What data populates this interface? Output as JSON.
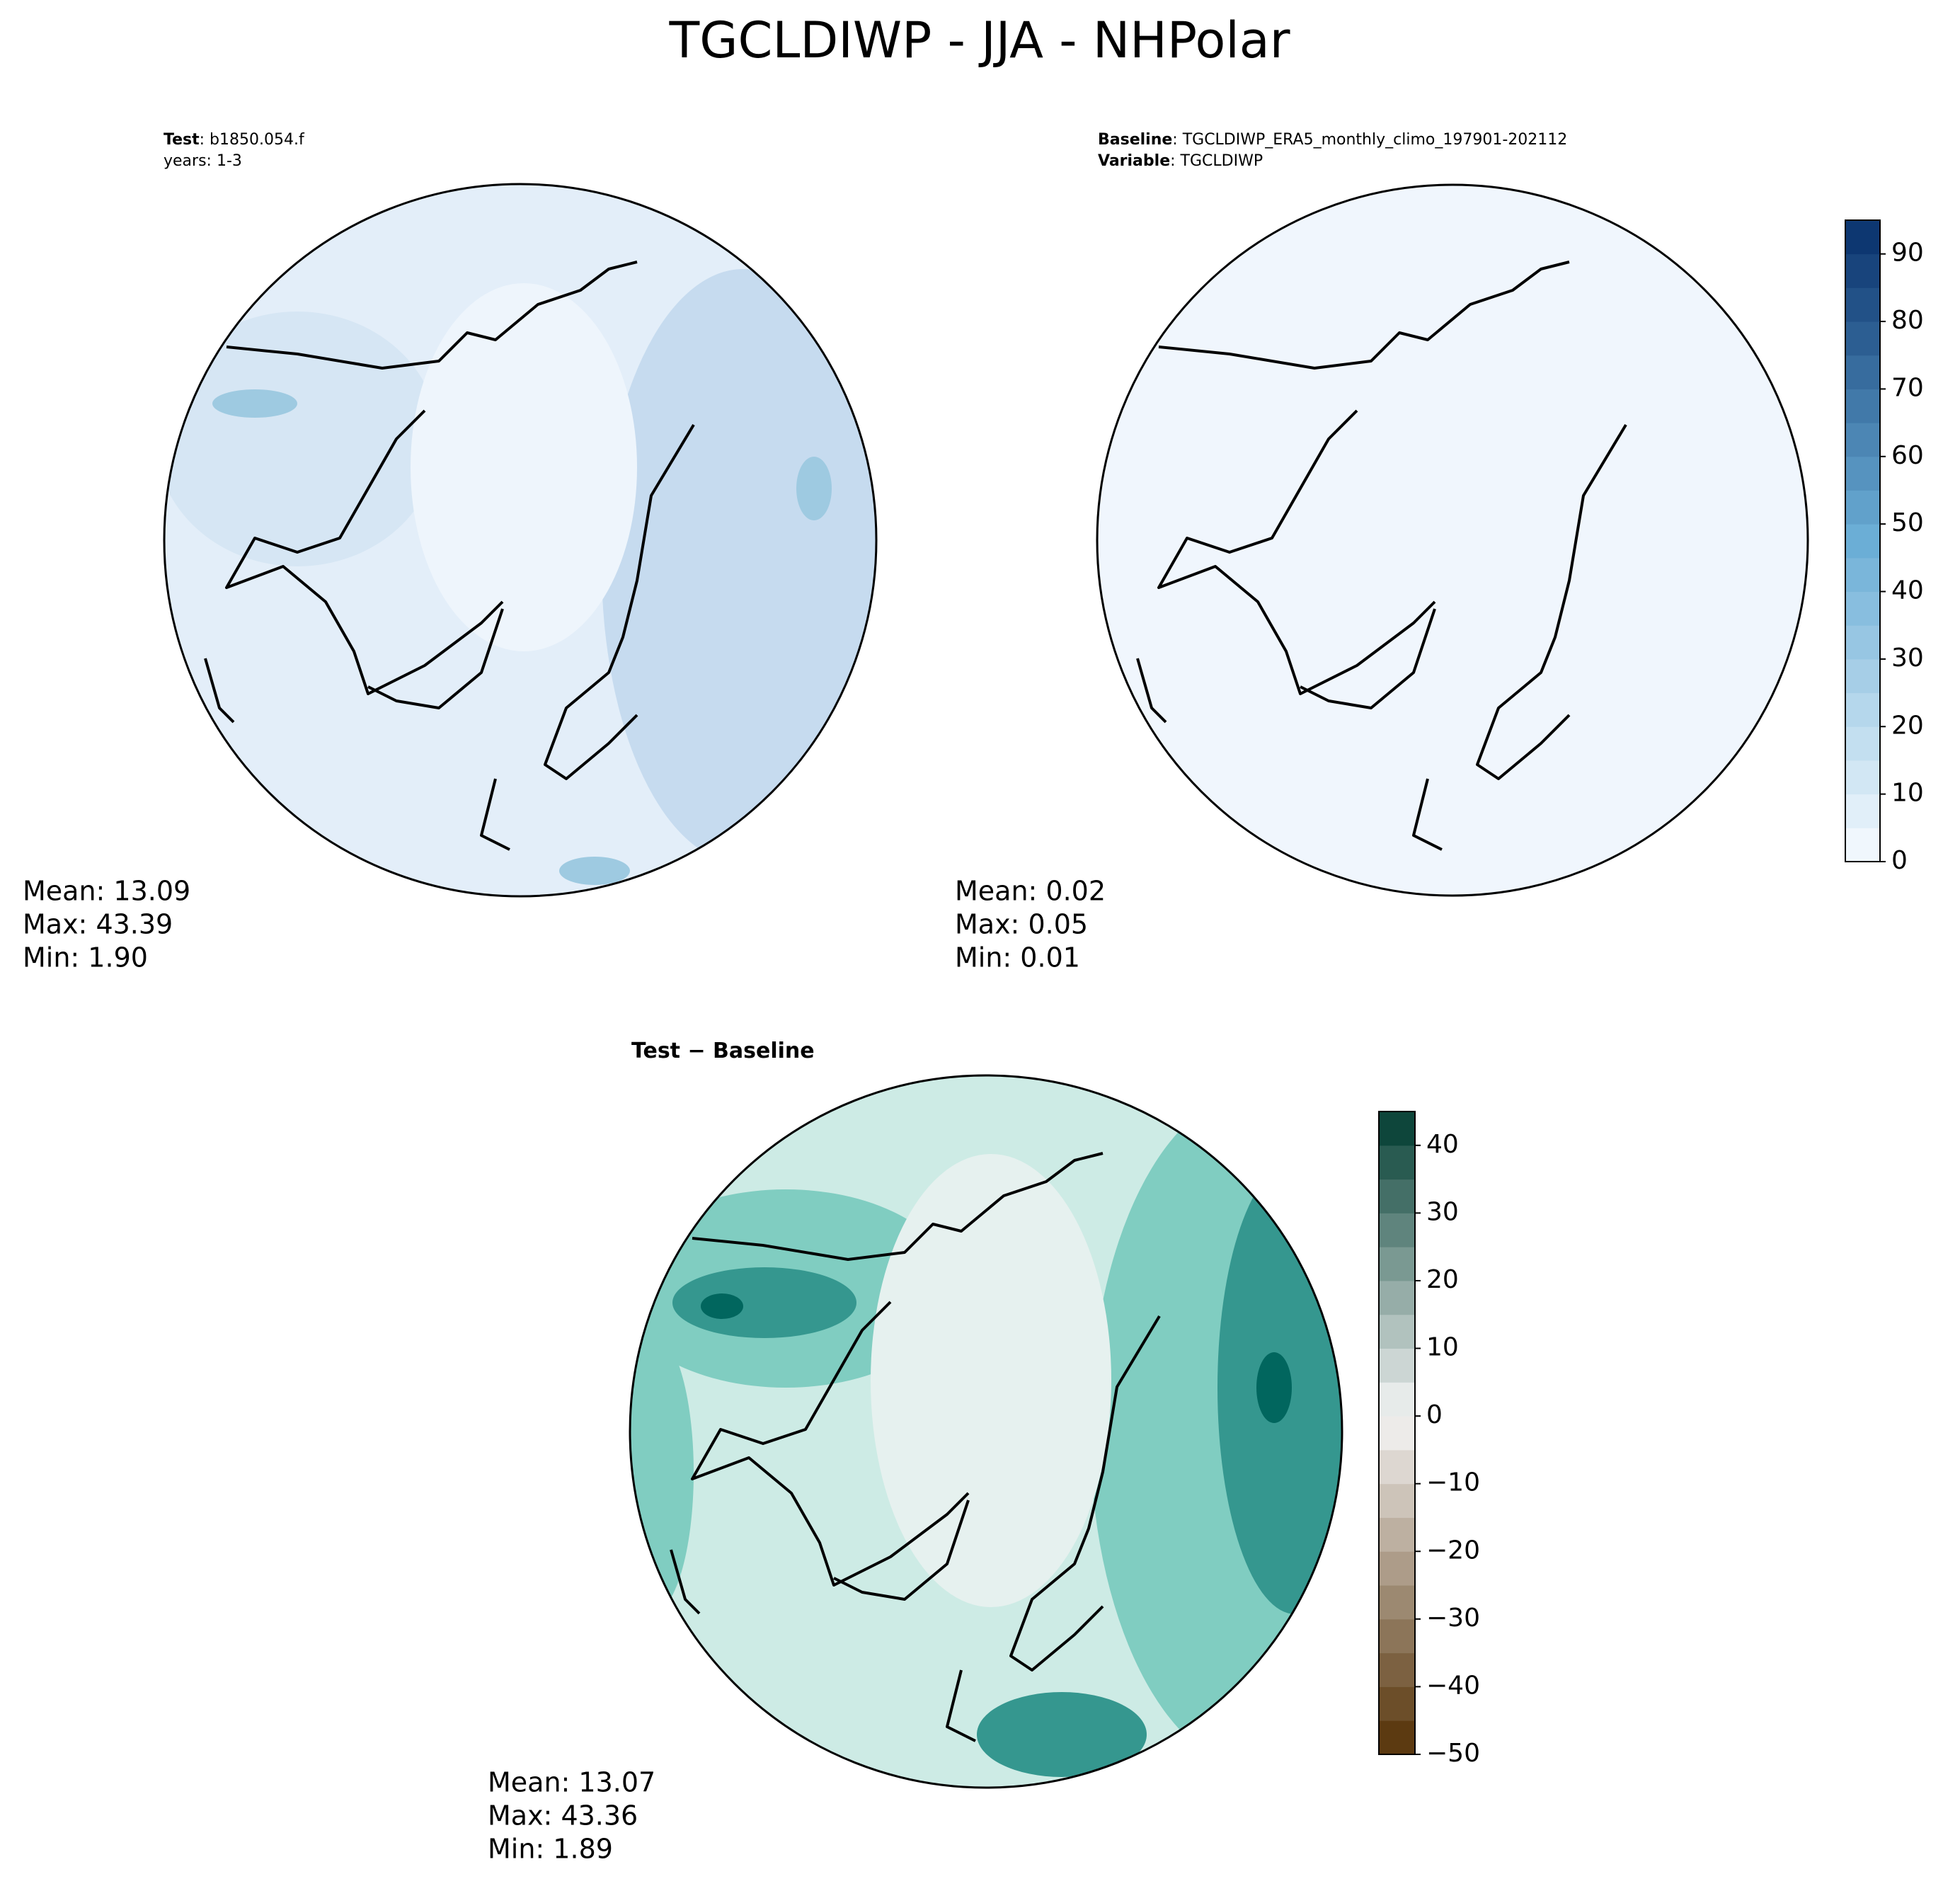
{
  "title": "TGCLDIWP - JJA - NHPolar",
  "panels": [
    {
      "header": [
        {
          "key": "Test",
          "text": ": b1850.054.f"
        },
        {
          "text": "years: 1-3"
        }
      ],
      "stats": [
        "Mean: 13.09",
        "Max: 43.39",
        "Min:  1.90"
      ]
    },
    {
      "header": [
        {
          "key": "Baseline",
          "text": ": TGCLDIWP_ERA5_monthly_climo_197901-202112"
        },
        {
          "key": "Variable",
          "text": ": TGCLDIWP"
        }
      ],
      "stats": [
        "Mean:  0.02",
        "Max:  0.05",
        "Min:  0.01"
      ]
    },
    {
      "header": [
        {
          "key": "Test − Baseline"
        }
      ],
      "stats": [
        "Mean: 13.07",
        "Max: 43.36",
        "Min:  1.89"
      ]
    }
  ],
  "colorbars": [
    {
      "lim": [
        0,
        95
      ],
      "ticks": [
        0,
        10,
        20,
        30,
        40,
        50,
        60,
        70,
        80,
        90
      ],
      "colors": [
        "#f7fbff",
        "#6baed6",
        "#08306b"
      ]
    },
    {
      "lim": [
        -50,
        45
      ],
      "ticks": [
        {
          "value": -50,
          "label": "−50"
        },
        {
          "value": -40,
          "label": "−40"
        },
        {
          "value": -30,
          "label": "−30"
        },
        {
          "value": -20,
          "label": "−20"
        },
        {
          "value": -10,
          "label": "−10"
        },
        0,
        10,
        20,
        30,
        40
      ],
      "colors": [
        "#543005",
        "#f5f5f5",
        "#003c30"
      ]
    }
  ]
}
